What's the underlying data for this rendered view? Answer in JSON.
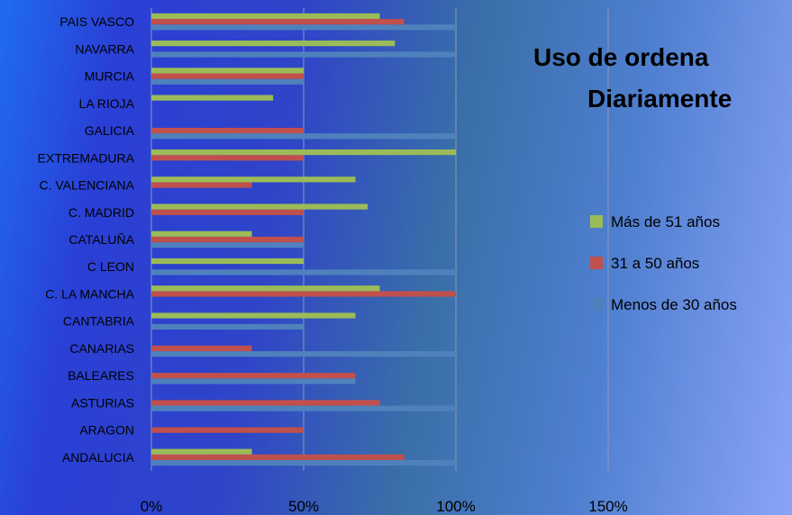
{
  "chart_data": {
    "type": "bar",
    "orientation": "horizontal",
    "title_lines": [
      "Uso de ordena",
      "Diariamente"
    ],
    "categories": [
      "ANDALUCIA",
      "ARAGON",
      "ASTURIAS",
      "BALEARES",
      "CANARIAS",
      "CANTABRIA",
      "C. LA MANCHA",
      "C LEON",
      "CATALUÑA",
      "C. MADRID",
      "C. VALENCIANA",
      "EXTREMADURA",
      "GALICIA",
      "LA RIOJA",
      "MURCIA",
      "NAVARRA",
      "PAIS VASCO"
    ],
    "series": [
      {
        "name": "Menos de 30 años",
        "color": "#4f81bd",
        "values": [
          100,
          0,
          100,
          67,
          100,
          50,
          0,
          100,
          50,
          0,
          0,
          0,
          100,
          0,
          50,
          100,
          100
        ]
      },
      {
        "name": "31 a 50 años",
        "color": "#c0504d",
        "values": [
          83,
          50,
          75,
          67,
          33,
          0,
          100,
          0,
          50,
          50,
          33,
          50,
          50,
          0,
          50,
          0,
          83
        ]
      },
      {
        "name": "Más de 51 años",
        "color": "#9bbb59",
        "values": [
          33,
          0,
          0,
          0,
          0,
          67,
          75,
          50,
          33,
          71,
          67,
          100,
          0,
          40,
          50,
          80,
          75
        ]
      }
    ],
    "x_ticks": [
      "0%",
      "50%",
      "100%",
      "150%"
    ],
    "xlim": [
      0,
      150
    ],
    "legend_order": [
      "Más de 51 años",
      "31 a 50 años",
      "Menos de 30 años"
    ],
    "legend_position": "right",
    "grid": true
  }
}
